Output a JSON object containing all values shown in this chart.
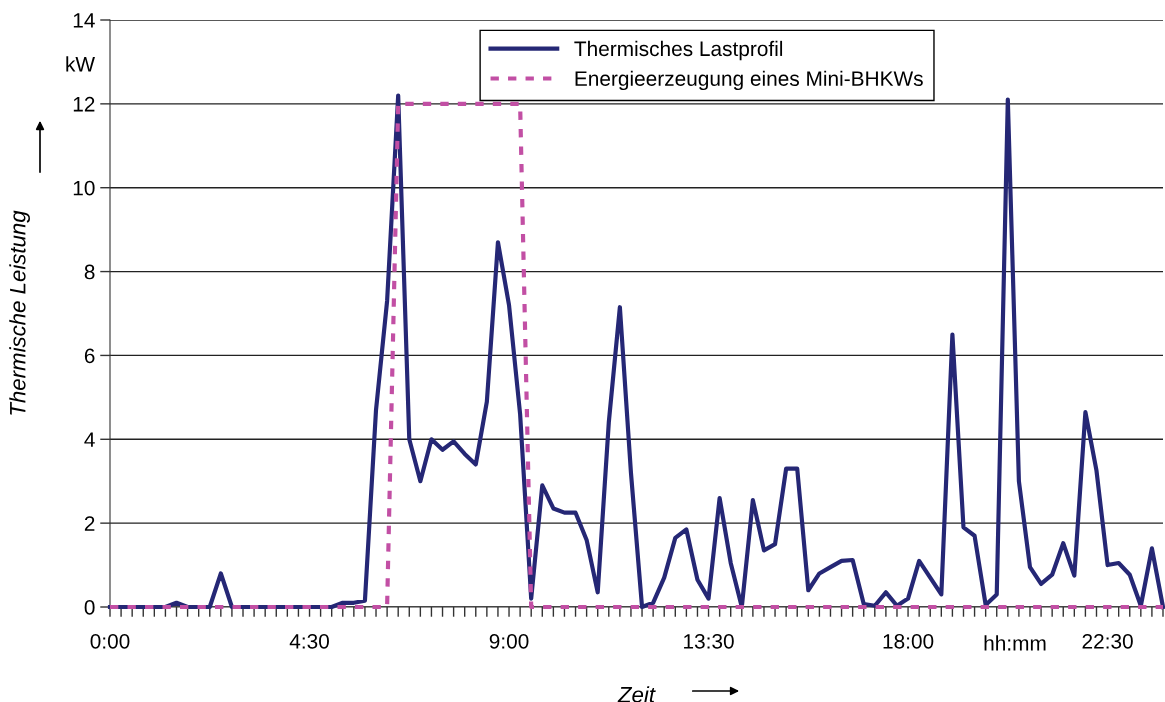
{
  "chart_data": {
    "type": "line",
    "xlabel": "Zeit",
    "ylabel": "Thermische Leistung",
    "annotations": [
      "kW",
      "hh:mm"
    ],
    "x": [
      0,
      0.25,
      0.5,
      0.75,
      1,
      1.25,
      1.5,
      1.75,
      2,
      2.25,
      2.5,
      2.75,
      3,
      3.25,
      3.5,
      3.75,
      4,
      4.25,
      4.5,
      4.75,
      5,
      5.25,
      5.5,
      5.75,
      6,
      6.25,
      6.5,
      6.75,
      7,
      7.25,
      7.5,
      7.75,
      8,
      8.25,
      8.5,
      8.75,
      9,
      9.25,
      9.5,
      9.75,
      10,
      10.25,
      10.5,
      10.75,
      11,
      11.25,
      11.5,
      11.75,
      12,
      12.25,
      12.5,
      12.75,
      13,
      13.25,
      13.5,
      13.75,
      14,
      14.25,
      14.5,
      14.75,
      15,
      15.25,
      15.5,
      15.75,
      16,
      16.25,
      16.5,
      16.75,
      17,
      17.25,
      17.5,
      17.75,
      18,
      18.25,
      18.5,
      18.75,
      19,
      19.25,
      19.5,
      19.75,
      20,
      20.25,
      20.5,
      20.75,
      21,
      21.25,
      21.5,
      21.75,
      22,
      22.25,
      22.5,
      22.75,
      23,
      23.25,
      23.5,
      23.75
    ],
    "series": [
      {
        "name": "Thermisches Lastprofil",
        "color": "#252775",
        "line_style": "solid",
        "values": [
          0,
          0,
          0,
          0,
          0,
          0,
          0.1,
          0,
          0,
          0,
          0.8,
          0,
          0,
          0,
          0,
          0,
          0,
          0,
          0,
          0,
          0,
          0.1,
          0.1,
          0.15,
          4.7,
          7.3,
          12.2,
          4.0,
          3.0,
          4.0,
          3.75,
          3.95,
          3.65,
          3.4,
          4.9,
          8.7,
          7.2,
          4.6,
          0.2,
          2.9,
          2.35,
          2.25,
          2.25,
          1.6,
          0.35,
          4.4,
          7.15,
          3.2,
          0,
          0.1,
          0.7,
          1.65,
          1.85,
          0.65,
          0.2,
          2.6,
          1.05,
          0,
          2.55,
          1.35,
          1.5,
          3.3,
          3.3,
          0.4,
          0.8,
          0.95,
          1.1,
          1.12,
          0.07,
          0.03,
          0.35,
          0.03,
          0.2,
          1.1,
          0.7,
          0.3,
          6.5,
          1.9,
          1.7,
          0.05,
          0.3,
          12.1,
          3.0,
          0.95,
          0.55,
          0.77,
          1.52,
          0.75,
          4.65,
          3.25,
          1.0,
          1.05,
          0.77,
          0.03,
          1.4,
          0
        ]
      },
      {
        "name": "Energieerzeugung eines Mini-BHKWs",
        "color": "#c24fa4",
        "line_style": "dashed",
        "values": [
          0,
          0,
          0,
          0,
          0,
          0,
          0,
          0,
          0,
          0,
          0,
          0,
          0,
          0,
          0,
          0,
          0,
          0,
          0,
          0,
          0,
          0,
          0,
          0,
          0,
          0,
          12,
          12,
          12,
          12,
          12,
          12,
          12,
          12,
          12,
          12,
          12,
          12,
          0,
          0,
          0,
          0,
          0,
          0,
          0,
          0,
          0,
          0,
          0,
          0,
          0,
          0,
          0,
          0,
          0,
          0,
          0,
          0,
          0,
          0,
          0,
          0,
          0,
          0,
          0,
          0,
          0,
          0,
          0,
          0,
          0,
          0,
          0,
          0,
          0,
          0,
          0,
          0,
          0,
          0,
          0,
          0,
          0,
          0,
          0,
          0,
          0,
          0,
          0,
          0,
          0,
          0,
          0,
          0,
          0,
          0
        ]
      }
    ],
    "xlim": [
      0,
      23.75
    ],
    "xticks": [
      {
        "value": 0,
        "label": "0:00"
      },
      {
        "value": 0.25,
        "label": null
      },
      {
        "value": 0.5,
        "label": null
      },
      {
        "value": 0.75,
        "label": null
      },
      {
        "value": 1,
        "label": null
      },
      {
        "value": 1.25,
        "label": null
      },
      {
        "value": 1.5,
        "label": null
      },
      {
        "value": 1.75,
        "label": null
      },
      {
        "value": 2,
        "label": null
      },
      {
        "value": 2.25,
        "label": null
      },
      {
        "value": 2.5,
        "label": null
      },
      {
        "value": 2.75,
        "label": null
      },
      {
        "value": 3,
        "label": null
      },
      {
        "value": 3.25,
        "label": null
      },
      {
        "value": 3.5,
        "label": null
      },
      {
        "value": 3.75,
        "label": null
      },
      {
        "value": 4,
        "label": null
      },
      {
        "value": 4.25,
        "label": null
      },
      {
        "value": 4.5,
        "label": "4:30"
      },
      {
        "value": 4.75,
        "label": null
      },
      {
        "value": 5,
        "label": null
      },
      {
        "value": 5.25,
        "label": null
      },
      {
        "value": 5.5,
        "label": null
      },
      {
        "value": 5.75,
        "label": null
      },
      {
        "value": 6,
        "label": null
      },
      {
        "value": 6.25,
        "label": null
      },
      {
        "value": 6.5,
        "label": null
      },
      {
        "value": 6.75,
        "label": null
      },
      {
        "value": 7,
        "label": null
      },
      {
        "value": 7.25,
        "label": null
      },
      {
        "value": 7.5,
        "label": null
      },
      {
        "value": 7.75,
        "label": null
      },
      {
        "value": 8,
        "label": null
      },
      {
        "value": 8.25,
        "label": null
      },
      {
        "value": 8.5,
        "label": null
      },
      {
        "value": 8.75,
        "label": null
      },
      {
        "value": 9,
        "label": "9:00"
      },
      {
        "value": 9.25,
        "label": null
      },
      {
        "value": 9.5,
        "label": null
      },
      {
        "value": 9.75,
        "label": null
      },
      {
        "value": 10,
        "label": null
      },
      {
        "value": 10.25,
        "label": null
      },
      {
        "value": 10.5,
        "label": null
      },
      {
        "value": 10.75,
        "label": null
      },
      {
        "value": 11,
        "label": null
      },
      {
        "value": 11.25,
        "label": null
      },
      {
        "value": 11.5,
        "label": null
      },
      {
        "value": 11.75,
        "label": null
      },
      {
        "value": 12,
        "label": null
      },
      {
        "value": 12.25,
        "label": null
      },
      {
        "value": 12.5,
        "label": null
      },
      {
        "value": 12.75,
        "label": null
      },
      {
        "value": 13,
        "label": null
      },
      {
        "value": 13.25,
        "label": null
      },
      {
        "value": 13.5,
        "label": "13:30"
      },
      {
        "value": 13.75,
        "label": null
      },
      {
        "value": 14,
        "label": null
      },
      {
        "value": 14.25,
        "label": null
      },
      {
        "value": 14.5,
        "label": null
      },
      {
        "value": 14.75,
        "label": null
      },
      {
        "value": 15,
        "label": null
      },
      {
        "value": 15.25,
        "label": null
      },
      {
        "value": 15.5,
        "label": null
      },
      {
        "value": 15.75,
        "label": null
      },
      {
        "value": 16,
        "label": null
      },
      {
        "value": 16.25,
        "label": null
      },
      {
        "value": 16.5,
        "label": null
      },
      {
        "value": 16.75,
        "label": null
      },
      {
        "value": 17,
        "label": null
      },
      {
        "value": 17.25,
        "label": null
      },
      {
        "value": 17.5,
        "label": null
      },
      {
        "value": 17.75,
        "label": null
      },
      {
        "value": 18,
        "label": "18:00"
      },
      {
        "value": 18.25,
        "label": null
      },
      {
        "value": 18.5,
        "label": null
      },
      {
        "value": 18.75,
        "label": null
      },
      {
        "value": 19,
        "label": null
      },
      {
        "value": 19.25,
        "label": null
      },
      {
        "value": 19.5,
        "label": null
      },
      {
        "value": 19.75,
        "label": null
      },
      {
        "value": 20,
        "label": null
      },
      {
        "value": 20.25,
        "label": null
      },
      {
        "value": 20.5,
        "label": null
      },
      {
        "value": 20.75,
        "label": null
      },
      {
        "value": 21,
        "label": null
      },
      {
        "value": 21.25,
        "label": null
      },
      {
        "value": 21.5,
        "label": null
      },
      {
        "value": 21.75,
        "label": null
      },
      {
        "value": 22,
        "label": null
      },
      {
        "value": 22.25,
        "label": null
      },
      {
        "value": 22.5,
        "label": "22:30"
      },
      {
        "value": 22.75,
        "label": null
      },
      {
        "value": 23,
        "label": null
      },
      {
        "value": 23.25,
        "label": null
      },
      {
        "value": 23.5,
        "label": null
      },
      {
        "value": 23.75,
        "label": null
      }
    ],
    "ylim": [
      0,
      14
    ],
    "yticks": [
      0,
      2,
      4,
      6,
      8,
      10,
      12,
      14
    ],
    "grid": "y",
    "legend": "top",
    "marker": "none"
  }
}
